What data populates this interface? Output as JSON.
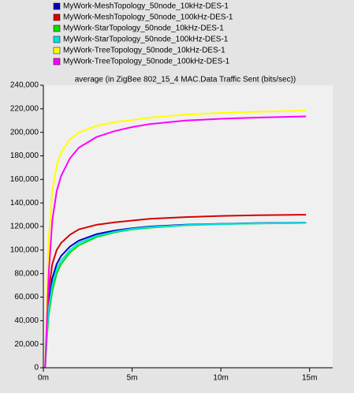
{
  "chart_data": {
    "type": "line",
    "title": "average (in ZigBee 802_15_4 MAC.Data Traffic Sent (bits/sec))",
    "x": [
      0.1,
      0.2,
      0.3,
      0.5,
      0.75,
      1,
      1.5,
      2,
      3,
      4,
      5,
      6,
      8,
      10,
      12,
      14.8
    ],
    "series": [
      {
        "name": "MyWork-MeshTopology_50node_10kHz-DES-1",
        "color": "#0000c8",
        "values": [
          0,
          35000,
          55000,
          76000,
          88000,
          95000,
          103000,
          108000,
          113500,
          116500,
          118500,
          120000,
          121500,
          122300,
          122800,
          123200
        ]
      },
      {
        "name": "MyWork-MeshTopology_50node_100kHz-DES-1",
        "color": "#d80000",
        "values": [
          0,
          40000,
          65000,
          88000,
          100000,
          106000,
          113000,
          117500,
          121500,
          123500,
          125000,
          126500,
          128000,
          129000,
          129500,
          130000
        ]
      },
      {
        "name": "MyWork-StarTopology_50node_10kHz-DES-1",
        "color": "#00e000",
        "values": [
          0,
          25000,
          45000,
          65000,
          80000,
          88000,
          98000,
          104000,
          111000,
          115000,
          117500,
          119000,
          121000,
          122000,
          122500,
          123000
        ]
      },
      {
        "name": "MyWork-StarTopology_50node_100kHz-DES-1",
        "color": "#00e0e0",
        "values": [
          0,
          30000,
          50000,
          70000,
          84000,
          91000,
          100000,
          106000,
          112000,
          115500,
          118000,
          119500,
          121200,
          122100,
          122600,
          123100
        ]
      },
      {
        "name": "MyWork-TreeTopology_50node_10kHz-DES-1",
        "color": "#ffff00",
        "values": [
          0,
          60000,
          110000,
          150000,
          172000,
          183000,
          194000,
          200000,
          205500,
          208500,
          210500,
          212500,
          215000,
          216500,
          217500,
          218500
        ]
      },
      {
        "name": "MyWork-TreeTopology_50node_100kHz-DES-1",
        "color": "#ff00ff",
        "values": [
          0,
          40000,
          80000,
          125000,
          150000,
          163000,
          178000,
          187000,
          196000,
          201000,
          204500,
          207000,
          210000,
          211500,
          212500,
          213500
        ]
      }
    ],
    "xlim": [
      0,
      16.3
    ],
    "xticks": [
      {
        "value": 0,
        "label": "0m"
      },
      {
        "value": 5,
        "label": "5m"
      },
      {
        "value": 10,
        "label": "10m"
      },
      {
        "value": 15,
        "label": "15m"
      }
    ],
    "ylim": [
      0,
      240000
    ],
    "yticks": [
      {
        "value": 0,
        "label": "0"
      },
      {
        "value": 20000,
        "label": "20,000"
      },
      {
        "value": 40000,
        "label": "40,000"
      },
      {
        "value": 60000,
        "label": "60,000"
      },
      {
        "value": 80000,
        "label": "80,000"
      },
      {
        "value": 100000,
        "label": "100,000"
      },
      {
        "value": 120000,
        "label": "120,000"
      },
      {
        "value": 140000,
        "label": "140,000"
      },
      {
        "value": 160000,
        "label": "160,000"
      },
      {
        "value": 180000,
        "label": "180,000"
      },
      {
        "value": 200000,
        "label": "200,000"
      },
      {
        "value": 220000,
        "label": "220,000"
      },
      {
        "value": 240000,
        "label": "240,000"
      }
    ],
    "grid": false
  }
}
